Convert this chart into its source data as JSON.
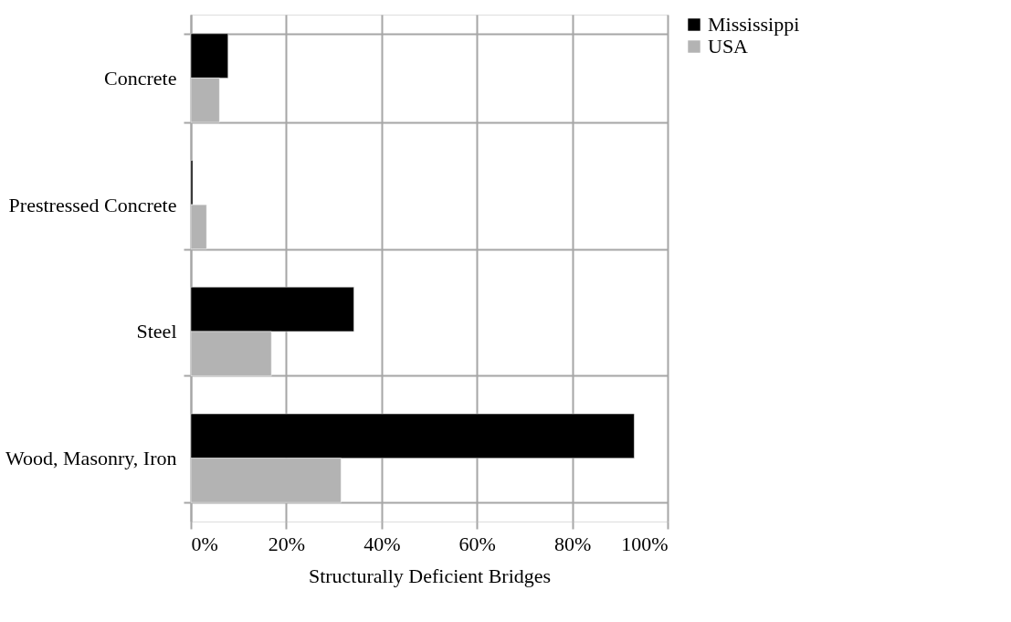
{
  "chart_data": {
    "type": "bar",
    "orientation": "horizontal",
    "xlabel": "Structurally Deficient Bridges",
    "categories": [
      "Concrete",
      "Prestressed Concrete",
      "Steel",
      "Wood, Masonry, Iron"
    ],
    "series": [
      {
        "name": "Mississippi",
        "color": "#000000",
        "values": [
          7.8,
          0.4,
          34.2,
          93.0
        ]
      },
      {
        "name": "USA",
        "color": "#b3b3b3",
        "values": [
          6.0,
          3.3,
          16.9,
          31.5
        ]
      }
    ],
    "xlim": [
      0,
      100
    ],
    "xticks": [
      {
        "value": 0,
        "label": "0%"
      },
      {
        "value": 20,
        "label": "20%"
      },
      {
        "value": 40,
        "label": "40%"
      },
      {
        "value": 60,
        "label": "60%"
      },
      {
        "value": 80,
        "label": "80%"
      },
      {
        "value": 100,
        "label": "100%"
      }
    ],
    "grid": true,
    "legend": "right"
  }
}
